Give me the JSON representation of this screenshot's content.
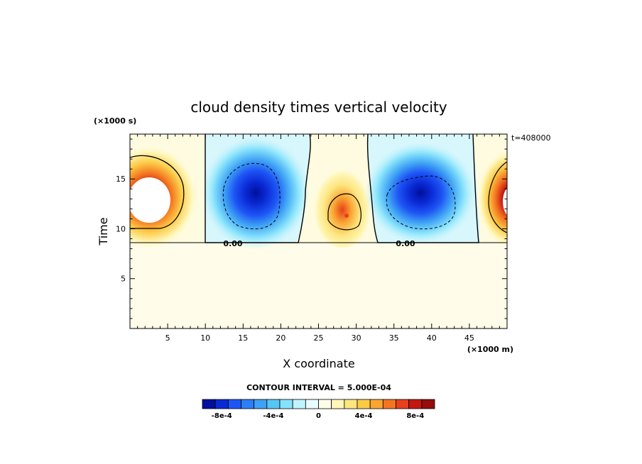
{
  "chart_data": {
    "type": "heatmap",
    "title": "cloud density times vertical velocity",
    "xlabel": "X coordinate",
    "ylabel": "Time",
    "x_unit_label": "(×1000 m)",
    "y_unit_label": "(×1000 s)",
    "time_stamp": "t=408000",
    "xlim": [
      0,
      50
    ],
    "ylim": [
      0,
      19.5
    ],
    "x_ticks": [
      5,
      10,
      15,
      20,
      25,
      30,
      35,
      40,
      45
    ],
    "y_ticks": [
      5,
      10,
      15
    ],
    "contour_interval_text": "CONTOUR INTERVAL = 5.000E-04",
    "zero_contour_label": "0.00",
    "cloud_base_time": 8.7,
    "features": [
      {
        "name": "updraft-left-edge",
        "sign": "positive",
        "x": 2,
        "t": 13,
        "peak": 0.001
      },
      {
        "name": "downdraft-1",
        "sign": "negative",
        "x": 17,
        "t": 12.8,
        "peak": -0.00095
      },
      {
        "name": "updraft-center",
        "sign": "positive",
        "x": 28.5,
        "t": 11.7,
        "peak": 0.0008
      },
      {
        "name": "downdraft-2",
        "sign": "negative",
        "x": 38.5,
        "t": 12.5,
        "peak": -0.0009
      },
      {
        "name": "updraft-right-edge",
        "sign": "positive",
        "x": 50,
        "t": 13,
        "peak": 0.00095
      }
    ],
    "colorbar": {
      "colors": [
        "#000f9c",
        "#0a2ad6",
        "#1e55f5",
        "#2b7ef8",
        "#3ea1f5",
        "#56c6f5",
        "#86e2fb",
        "#c0f4fd",
        "#e8fbfd",
        "#fffdea",
        "#fff6b8",
        "#fde680",
        "#fccb45",
        "#f9a533",
        "#f47520",
        "#e8401a",
        "#c51712",
        "#950d0d"
      ],
      "tick_labels": [
        "-8e-4",
        "-4e-4",
        "0",
        "4e-4",
        "8e-4"
      ]
    }
  }
}
